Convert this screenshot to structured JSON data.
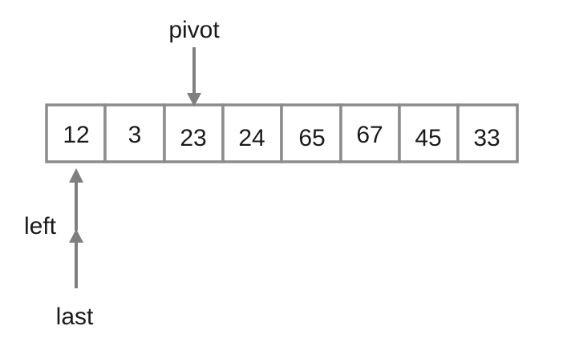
{
  "array": {
    "cells": [
      "12",
      "3",
      "23",
      "24",
      "65",
      "67",
      "45",
      "33"
    ]
  },
  "pointers": {
    "pivot": {
      "label": "pivot",
      "index": 2
    },
    "left": {
      "label": "left",
      "index": 0
    },
    "last": {
      "label": "last",
      "index": 0
    }
  },
  "colors": {
    "cell_border": "#8c8c8c",
    "arrow": "#7f7f7f",
    "text": "#1a1a1a"
  }
}
